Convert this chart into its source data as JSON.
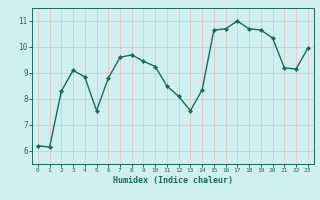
{
  "x": [
    0,
    1,
    2,
    3,
    4,
    5,
    6,
    7,
    8,
    9,
    10,
    11,
    12,
    13,
    14,
    15,
    16,
    17,
    18,
    19,
    20,
    21,
    22,
    23
  ],
  "y": [
    6.2,
    6.15,
    8.3,
    9.1,
    8.85,
    7.55,
    8.8,
    9.6,
    9.7,
    9.45,
    9.25,
    8.5,
    8.1,
    7.55,
    8.35,
    10.65,
    10.7,
    11.0,
    10.7,
    10.65,
    10.35,
    9.2,
    9.15,
    9.95
  ],
  "line_color": "#1a6b5a",
  "marker": "D",
  "markersize": 2,
  "linewidth": 1.0,
  "xlabel": "Humidex (Indice chaleur)",
  "xlim": [
    -0.5,
    23.5
  ],
  "ylim": [
    5.5,
    11.5
  ],
  "yticks": [
    6,
    7,
    8,
    9,
    10,
    11
  ],
  "xticks": [
    0,
    1,
    2,
    3,
    4,
    5,
    6,
    7,
    8,
    9,
    10,
    11,
    12,
    13,
    14,
    15,
    16,
    17,
    18,
    19,
    20,
    21,
    22,
    23
  ],
  "background_color": "#cff0ee",
  "grid_color": "#e8c8c8",
  "tick_color": "#1a6b5a",
  "label_color": "#1a6b5a",
  "figwidth": 3.2,
  "figheight": 2.0,
  "dpi": 100
}
